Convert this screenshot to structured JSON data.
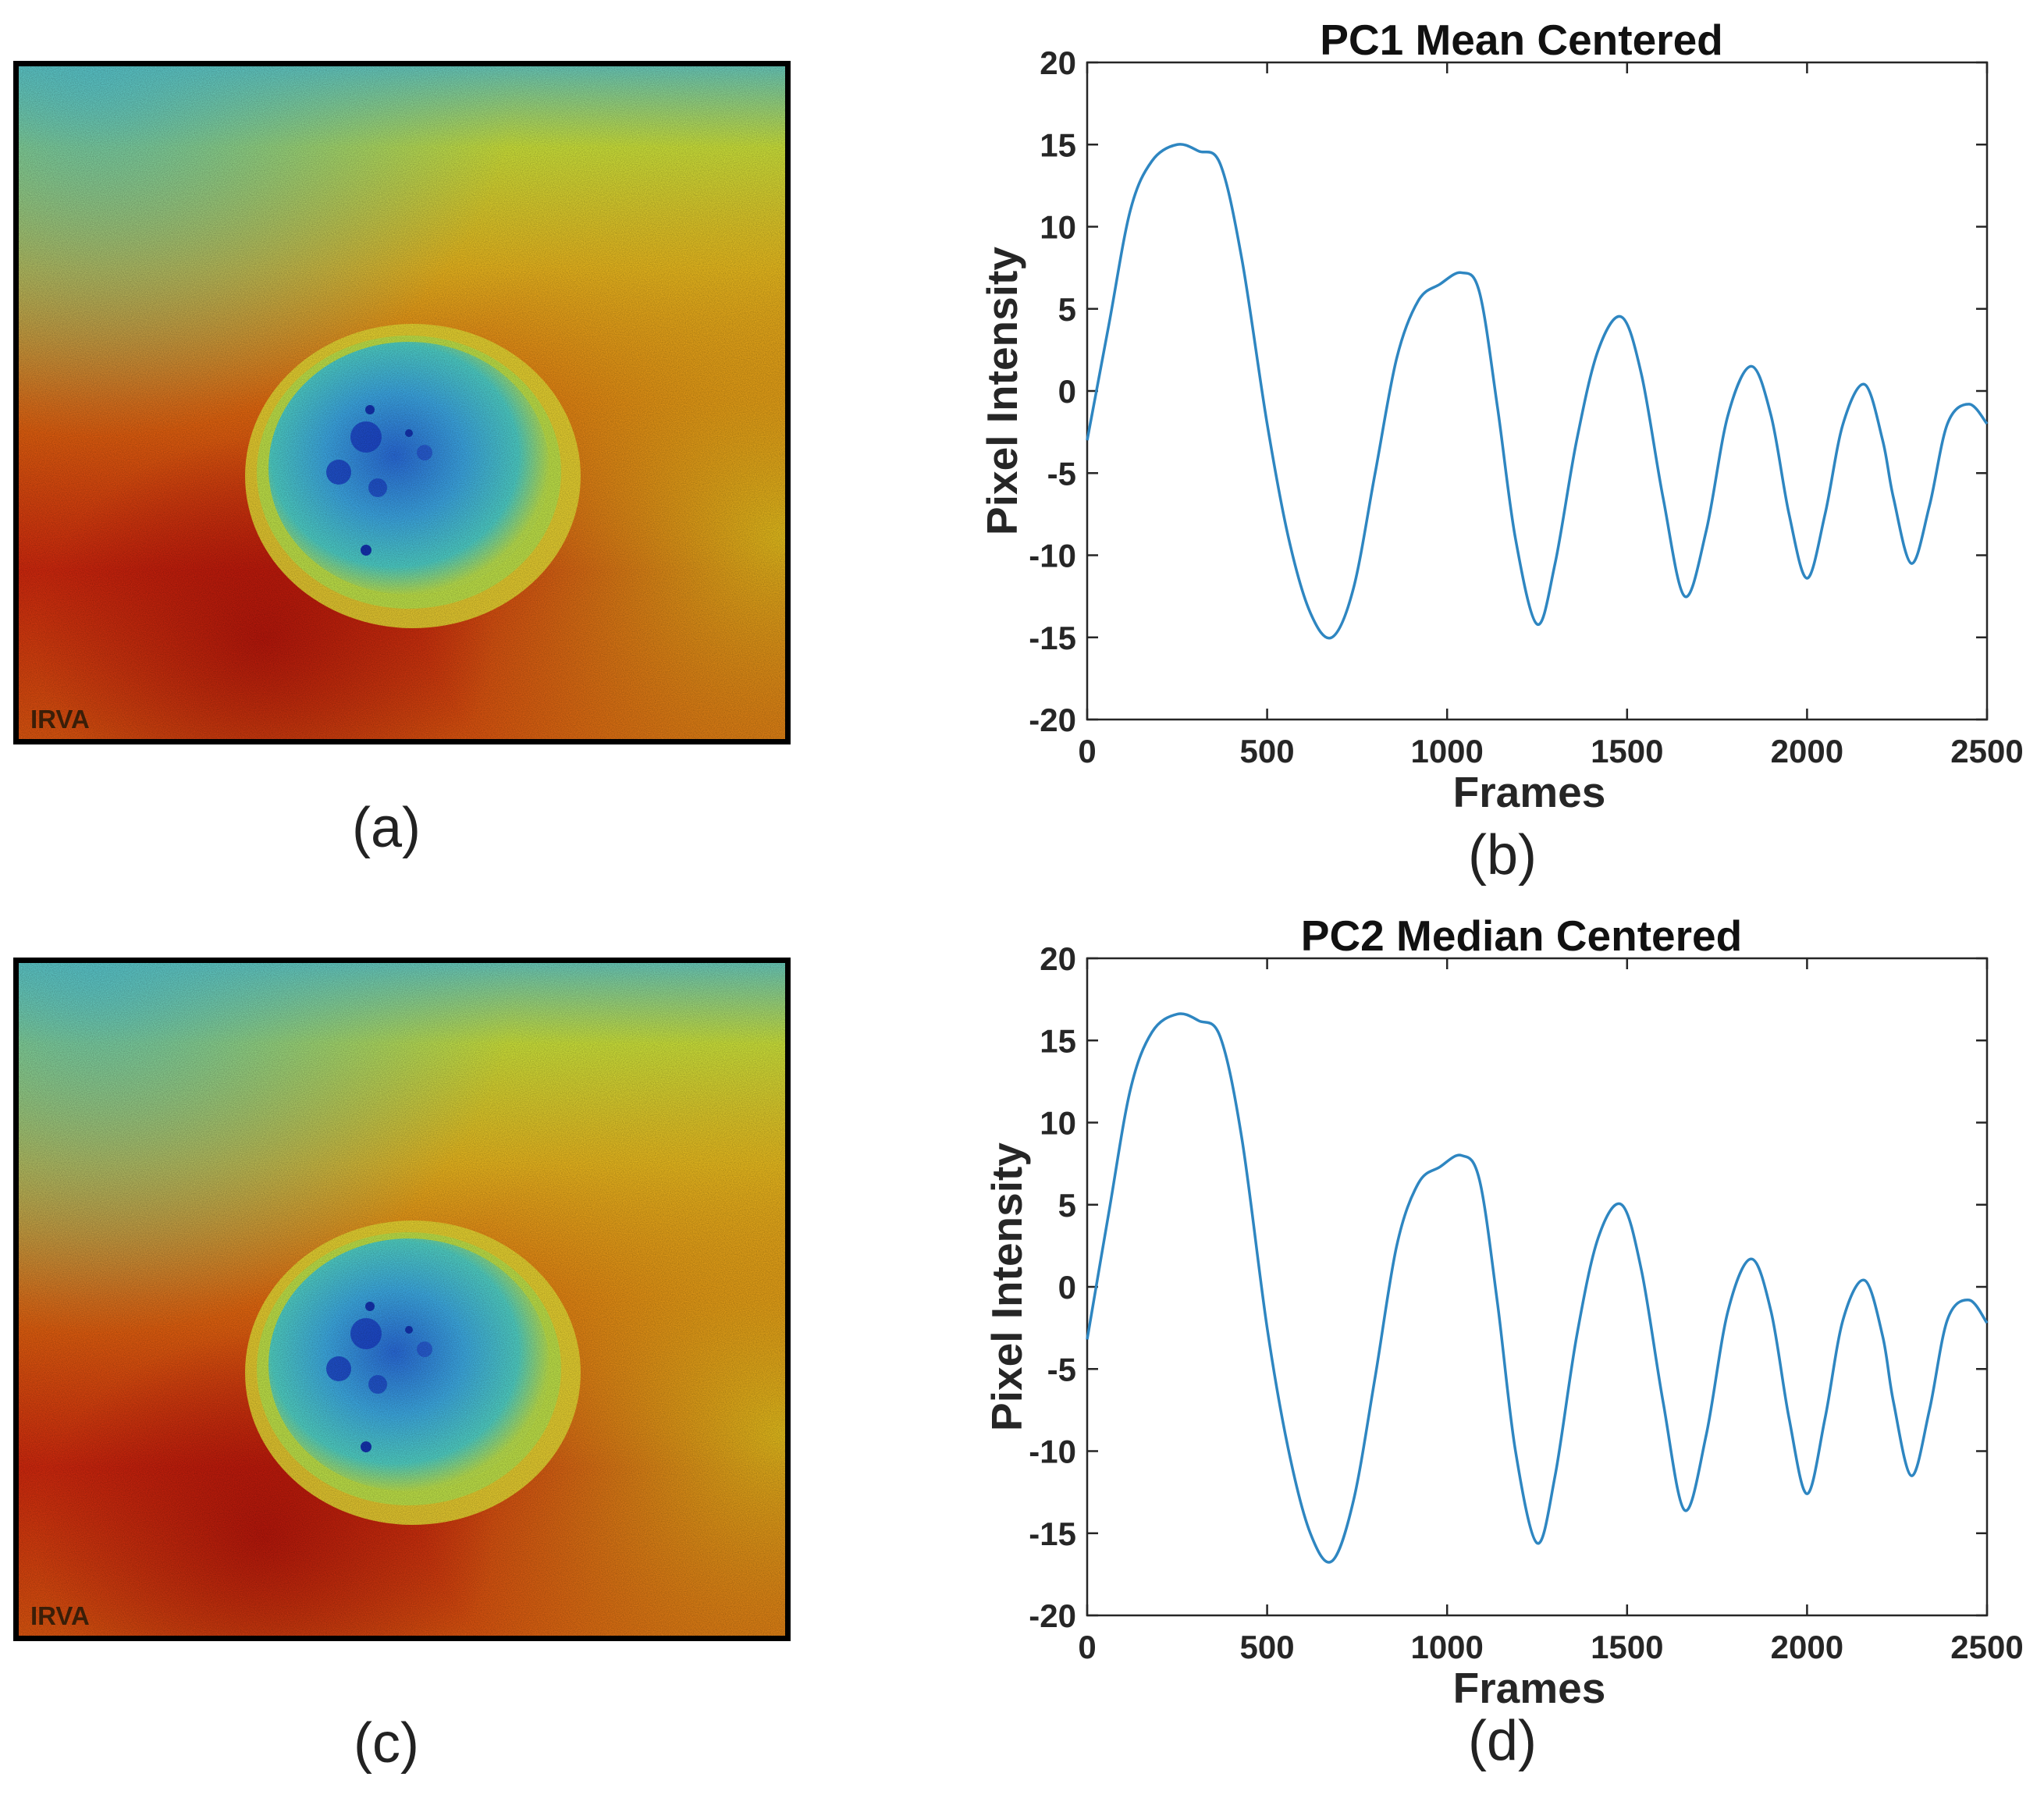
{
  "figure": {
    "panels": [
      {
        "id": "a",
        "label": "(a)",
        "stamp": "IRVA",
        "description_type": "thermal-map"
      },
      {
        "id": "c",
        "label": "(c)",
        "stamp": "IRVA",
        "description_type": "thermal-map"
      }
    ],
    "chart_labels": [
      "(b)",
      "(d)"
    ],
    "colors": {
      "line": "#2E86C1",
      "axis": "#262626",
      "border": "#000000"
    }
  },
  "chart_data": [
    {
      "type": "line",
      "title": "PC1 Mean Centered",
      "xlabel": "Frames",
      "ylabel": "Pixel Intensity",
      "xlim": [
        0,
        2500
      ],
      "ylim": [
        -20,
        20
      ],
      "xticks": [
        0,
        500,
        1000,
        1500,
        2000,
        2500
      ],
      "yticks": [
        20,
        15,
        10,
        5,
        0,
        -5,
        -10,
        -15,
        -20
      ],
      "grid": false,
      "series": [
        {
          "name": "PC1",
          "x": [
            0,
            60,
            120,
            180,
            250,
            310,
            370,
            430,
            500,
            560,
            620,
            680,
            740,
            800,
            860,
            920,
            980,
            1040,
            1090,
            1140,
            1190,
            1250,
            1300,
            1360,
            1420,
            1485,
            1540,
            1600,
            1660,
            1720,
            1780,
            1845,
            1900,
            1950,
            2000,
            2050,
            2100,
            2160,
            2210,
            2240,
            2290,
            2340,
            2390,
            2450,
            2500
          ],
          "y": [
            -3,
            4,
            11,
            14,
            15,
            14.6,
            13.8,
            8,
            -2,
            -9,
            -13.5,
            -15,
            -12,
            -5,
            2,
            5.5,
            6.5,
            7.2,
            6,
            -1,
            -9,
            -14.2,
            -10.5,
            -3,
            2.5,
            4.5,
            1,
            -6.5,
            -12.5,
            -8.5,
            -1.5,
            1.5,
            -1.5,
            -7.5,
            -11.4,
            -7.5,
            -2,
            0.4,
            -3,
            -6.5,
            -10.5,
            -7,
            -2,
            -0.8,
            -2
          ]
        }
      ]
    },
    {
      "type": "line",
      "title": "PC2 Median Centered",
      "xlabel": "Frames",
      "ylabel": "Pixel Intensity",
      "xlim": [
        0,
        2500
      ],
      "ylim": [
        -20,
        20
      ],
      "xticks": [
        0,
        500,
        1000,
        1500,
        2000,
        2500
      ],
      "yticks": [
        20,
        15,
        10,
        5,
        0,
        -5,
        -10,
        -15,
        -20
      ],
      "grid": false,
      "series": [
        {
          "name": "PC2",
          "x": [
            0,
            60,
            120,
            180,
            250,
            310,
            370,
            430,
            500,
            560,
            620,
            680,
            740,
            800,
            860,
            920,
            980,
            1040,
            1090,
            1140,
            1190,
            1250,
            1300,
            1360,
            1420,
            1485,
            1540,
            1600,
            1660,
            1720,
            1780,
            1845,
            1900,
            1950,
            2000,
            2050,
            2100,
            2160,
            2210,
            2240,
            2290,
            2340,
            2390,
            2450,
            2500
          ],
          "y": [
            -3.2,
            4.5,
            12,
            15.5,
            16.6,
            16.2,
            15.2,
            9,
            -2.5,
            -10,
            -15,
            -16.7,
            -13,
            -5.5,
            2.5,
            6.3,
            7.3,
            8,
            6.5,
            -1,
            -10,
            -15.6,
            -11.5,
            -3,
            3,
            5,
            1,
            -7,
            -13.6,
            -9,
            -1.5,
            1.7,
            -1.5,
            -8,
            -12.6,
            -8,
            -2,
            0.4,
            -3,
            -7,
            -11.5,
            -7.5,
            -2,
            -0.8,
            -2.2
          ]
        }
      ]
    }
  ]
}
